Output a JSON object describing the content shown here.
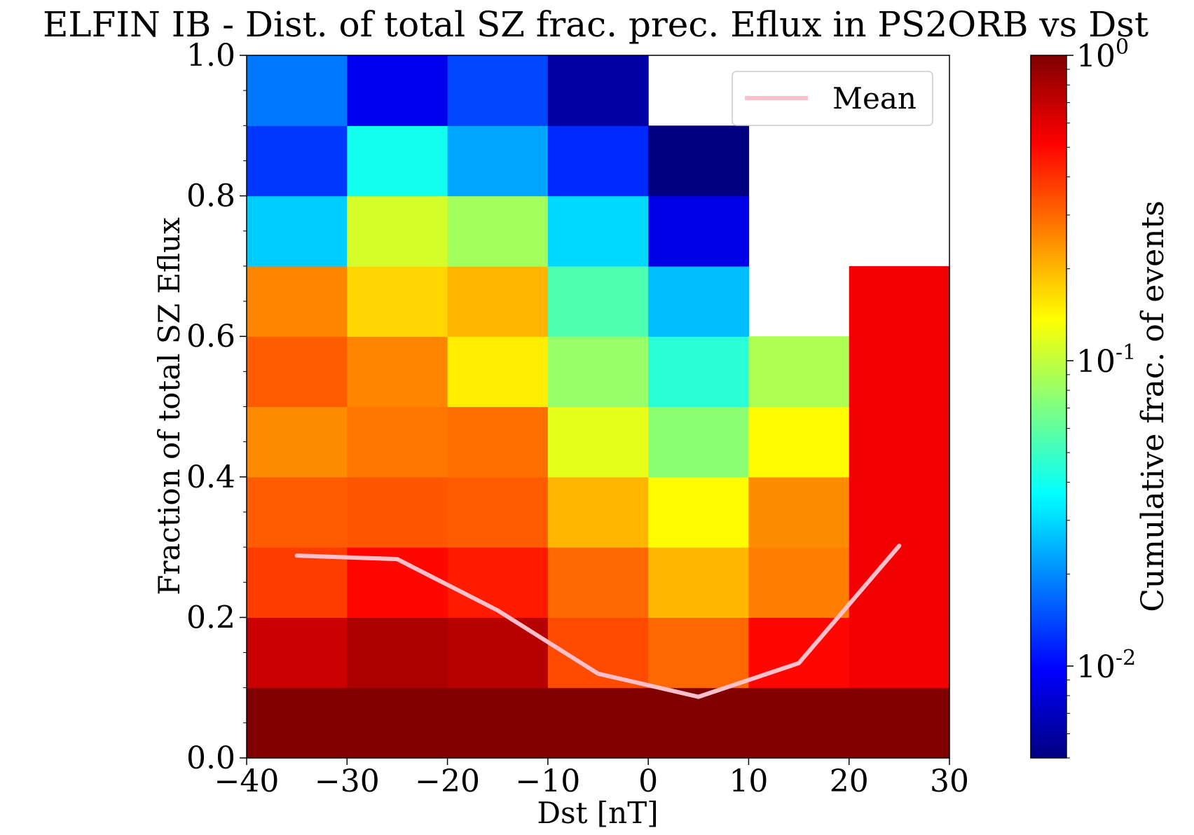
{
  "chart_data": {
    "type": "heatmap",
    "title": "ELFIN IB - Dist. of total SZ frac. prec. Eflux in PS2ORB vs Dst",
    "xlabel": "Dst [nT]",
    "ylabel": "Fraction of total SZ Eflux",
    "xlim": [
      -40,
      30
    ],
    "ylim": [
      0.0,
      1.0
    ],
    "x_ticks": [
      "−40",
      "−30",
      "−20",
      "−10",
      "0",
      "10",
      "20",
      "30"
    ],
    "y_ticks": [
      "0.0",
      "0.2",
      "0.4",
      "0.6",
      "0.8",
      "1.0"
    ],
    "x_bin_edges": [
      -40,
      -30,
      -20,
      -10,
      0,
      10,
      20,
      30
    ],
    "y_bin_edges": [
      0.0,
      0.1,
      0.2,
      0.3,
      0.4,
      0.5,
      0.6,
      0.7,
      0.8,
      0.9,
      1.0
    ],
    "colorbar": {
      "label": "Cumulative frac. of events",
      "scale": "log",
      "colormap": "jet",
      "range": [
        0.005,
        1.0
      ],
      "ticks": [
        {
          "base": "10",
          "exp": "0"
        },
        {
          "base": "10",
          "exp": "-1"
        },
        {
          "base": "10",
          "exp": "-2"
        }
      ]
    },
    "cells": [
      [
        1.0,
        0.68,
        0.38,
        0.32,
        0.25,
        0.32,
        0.26,
        0.028,
        0.013,
        0.018
      ],
      [
        1.0,
        0.8,
        0.5,
        0.33,
        0.28,
        0.26,
        0.17,
        0.11,
        0.04,
        0.009
      ],
      [
        1.0,
        0.75,
        0.45,
        0.32,
        0.29,
        0.15,
        0.2,
        0.085,
        0.023,
        0.014
      ],
      [
        1.0,
        0.35,
        0.3,
        0.2,
        0.12,
        0.08,
        0.055,
        0.03,
        0.012,
        0.006
      ],
      [
        1.0,
        0.3,
        0.2,
        0.14,
        0.075,
        0.045,
        0.026,
        0.0085,
        0.005,
        null
      ],
      [
        1.0,
        0.5,
        0.27,
        0.25,
        0.14,
        0.09,
        null,
        null,
        null,
        null
      ],
      [
        1.0,
        0.55,
        0.55,
        0.55,
        0.55,
        0.55,
        0.55,
        null,
        null,
        null
      ]
    ],
    "series": [
      {
        "name": "Mean",
        "color": "#ffc0cb",
        "x": [
          -35,
          -25,
          -15,
          -5,
          5,
          15,
          25
        ],
        "y": [
          0.288,
          0.283,
          0.21,
          0.12,
          0.087,
          0.135,
          0.302
        ]
      }
    ],
    "legend_position": "upper right",
    "grid": false
  }
}
